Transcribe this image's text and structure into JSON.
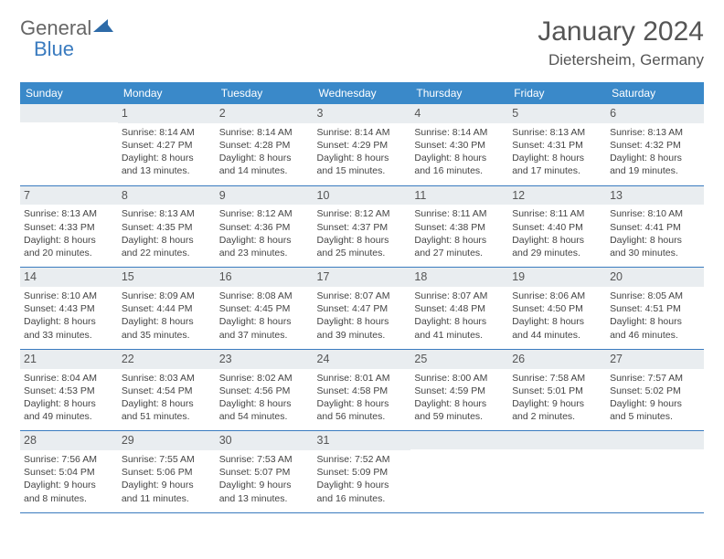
{
  "logo": {
    "part1": "General",
    "part2": "Blue"
  },
  "title": "January 2024",
  "location": "Dietersheim, Germany",
  "colors": {
    "header_bg": "#3a89c9",
    "header_fg": "#ffffff",
    "date_bg": "#e9edf0",
    "border": "#3a7bbf",
    "text": "#444444",
    "logo_gray": "#666666",
    "logo_blue": "#3a7bbf"
  },
  "weekdays": [
    "Sunday",
    "Monday",
    "Tuesday",
    "Wednesday",
    "Thursday",
    "Friday",
    "Saturday"
  ],
  "weeks": [
    [
      null,
      {
        "d": "1",
        "sr": "8:14 AM",
        "ss": "4:27 PM",
        "dl": "8 hours and 13 minutes."
      },
      {
        "d": "2",
        "sr": "8:14 AM",
        "ss": "4:28 PM",
        "dl": "8 hours and 14 minutes."
      },
      {
        "d": "3",
        "sr": "8:14 AM",
        "ss": "4:29 PM",
        "dl": "8 hours and 15 minutes."
      },
      {
        "d": "4",
        "sr": "8:14 AM",
        "ss": "4:30 PM",
        "dl": "8 hours and 16 minutes."
      },
      {
        "d": "5",
        "sr": "8:13 AM",
        "ss": "4:31 PM",
        "dl": "8 hours and 17 minutes."
      },
      {
        "d": "6",
        "sr": "8:13 AM",
        "ss": "4:32 PM",
        "dl": "8 hours and 19 minutes."
      }
    ],
    [
      {
        "d": "7",
        "sr": "8:13 AM",
        "ss": "4:33 PM",
        "dl": "8 hours and 20 minutes."
      },
      {
        "d": "8",
        "sr": "8:13 AM",
        "ss": "4:35 PM",
        "dl": "8 hours and 22 minutes."
      },
      {
        "d": "9",
        "sr": "8:12 AM",
        "ss": "4:36 PM",
        "dl": "8 hours and 23 minutes."
      },
      {
        "d": "10",
        "sr": "8:12 AM",
        "ss": "4:37 PM",
        "dl": "8 hours and 25 minutes."
      },
      {
        "d": "11",
        "sr": "8:11 AM",
        "ss": "4:38 PM",
        "dl": "8 hours and 27 minutes."
      },
      {
        "d": "12",
        "sr": "8:11 AM",
        "ss": "4:40 PM",
        "dl": "8 hours and 29 minutes."
      },
      {
        "d": "13",
        "sr": "8:10 AM",
        "ss": "4:41 PM",
        "dl": "8 hours and 30 minutes."
      }
    ],
    [
      {
        "d": "14",
        "sr": "8:10 AM",
        "ss": "4:43 PM",
        "dl": "8 hours and 33 minutes."
      },
      {
        "d": "15",
        "sr": "8:09 AM",
        "ss": "4:44 PM",
        "dl": "8 hours and 35 minutes."
      },
      {
        "d": "16",
        "sr": "8:08 AM",
        "ss": "4:45 PM",
        "dl": "8 hours and 37 minutes."
      },
      {
        "d": "17",
        "sr": "8:07 AM",
        "ss": "4:47 PM",
        "dl": "8 hours and 39 minutes."
      },
      {
        "d": "18",
        "sr": "8:07 AM",
        "ss": "4:48 PM",
        "dl": "8 hours and 41 minutes."
      },
      {
        "d": "19",
        "sr": "8:06 AM",
        "ss": "4:50 PM",
        "dl": "8 hours and 44 minutes."
      },
      {
        "d": "20",
        "sr": "8:05 AM",
        "ss": "4:51 PM",
        "dl": "8 hours and 46 minutes."
      }
    ],
    [
      {
        "d": "21",
        "sr": "8:04 AM",
        "ss": "4:53 PM",
        "dl": "8 hours and 49 minutes."
      },
      {
        "d": "22",
        "sr": "8:03 AM",
        "ss": "4:54 PM",
        "dl": "8 hours and 51 minutes."
      },
      {
        "d": "23",
        "sr": "8:02 AM",
        "ss": "4:56 PM",
        "dl": "8 hours and 54 minutes."
      },
      {
        "d": "24",
        "sr": "8:01 AM",
        "ss": "4:58 PM",
        "dl": "8 hours and 56 minutes."
      },
      {
        "d": "25",
        "sr": "8:00 AM",
        "ss": "4:59 PM",
        "dl": "8 hours and 59 minutes."
      },
      {
        "d": "26",
        "sr": "7:58 AM",
        "ss": "5:01 PM",
        "dl": "9 hours and 2 minutes."
      },
      {
        "d": "27",
        "sr": "7:57 AM",
        "ss": "5:02 PM",
        "dl": "9 hours and 5 minutes."
      }
    ],
    [
      {
        "d": "28",
        "sr": "7:56 AM",
        "ss": "5:04 PM",
        "dl": "9 hours and 8 minutes."
      },
      {
        "d": "29",
        "sr": "7:55 AM",
        "ss": "5:06 PM",
        "dl": "9 hours and 11 minutes."
      },
      {
        "d": "30",
        "sr": "7:53 AM",
        "ss": "5:07 PM",
        "dl": "9 hours and 13 minutes."
      },
      {
        "d": "31",
        "sr": "7:52 AM",
        "ss": "5:09 PM",
        "dl": "9 hours and 16 minutes."
      },
      null,
      null,
      null
    ]
  ],
  "labels": {
    "sunrise": "Sunrise:",
    "sunset": "Sunset:",
    "daylight": "Daylight:"
  }
}
